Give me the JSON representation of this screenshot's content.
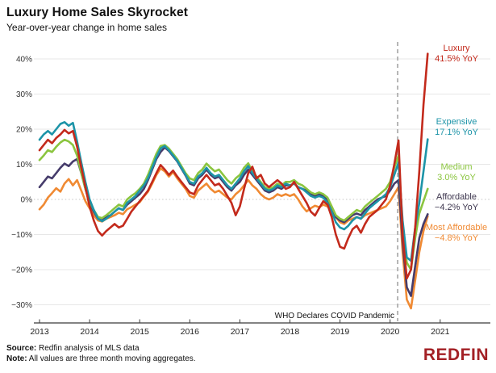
{
  "header": {
    "title": "Luxury Home Sales Skyrocket",
    "subtitle": "Year-over-year change in home sales"
  },
  "footer": {
    "source_label": "Source:",
    "source_text": "Redfin analysis of MLS data",
    "note_label": "Note:",
    "note_text": "All values are three month moving aggregates.",
    "logo": "REDFIN",
    "logo_color": "#a32025"
  },
  "chart_data": {
    "type": "line",
    "title": "Luxury Home Sales Skyrocket",
    "subtitle": "Year-over-year change in home sales",
    "x_interval": "monthly",
    "x_start": "2013-01",
    "x_end": "2020-10",
    "x_tick_labels": [
      "2013",
      "2014",
      "2015",
      "2016",
      "2017",
      "2018",
      "2019",
      "2020",
      "2021"
    ],
    "y_ticks": [
      40,
      30,
      20,
      10,
      0,
      -10,
      -20,
      -30
    ],
    "y_tick_labels": [
      "40%",
      "30%",
      "20%",
      "10%",
      "0%",
      "−10%",
      "−20%",
      "−30%"
    ],
    "ylim": [
      -35,
      45
    ],
    "grid": true,
    "zero_line_style": "dotted",
    "legend_position": "right-inline",
    "covid_line": {
      "label": "WHO Declares COVID Pandemic",
      "date": "2020-03"
    },
    "series": [
      {
        "name": "Luxury",
        "yoy_label": "41.5% YoY",
        "color": "#c32a1c",
        "label_color": "#c32a1c",
        "values": [
          14,
          15.5,
          17,
          16,
          17.5,
          18.5,
          19.8,
          18.8,
          19.5,
          15,
          9,
          3.5,
          -2,
          -6,
          -9,
          -10.3,
          -9,
          -8,
          -7,
          -8,
          -7.5,
          -5.5,
          -3.5,
          -2,
          -0.5,
          1,
          2.5,
          5,
          7.5,
          9.8,
          8.5,
          7,
          8.2,
          6.5,
          5,
          3.5,
          2,
          1.5,
          4,
          5.5,
          7,
          5.5,
          4,
          4.5,
          3,
          1,
          -1,
          -4.5,
          -2,
          3,
          7.5,
          9.3,
          6,
          7,
          4.5,
          3.5,
          4.5,
          5.5,
          4.5,
          3,
          3.5,
          5,
          3,
          1,
          -1,
          -3.5,
          -4.6,
          -2.5,
          -0.5,
          -1.5,
          -5,
          -10,
          -13.5,
          -14,
          -11,
          -8.5,
          -7.5,
          -9.5,
          -7,
          -5,
          -4,
          -3,
          -1.5,
          0,
          4,
          10,
          16.8,
          -10,
          -22.5,
          -20,
          -8,
          8,
          27,
          41.5
        ]
      },
      {
        "name": "Expensive",
        "yoy_label": "17.1% YoY",
        "color": "#1d94a8",
        "label_color": "#1d94a8",
        "values": [
          17,
          18.5,
          19.5,
          18.5,
          20,
          21.5,
          22,
          21,
          21.8,
          16.5,
          10.5,
          5,
          0,
          -3,
          -5.5,
          -6.2,
          -5.5,
          -4.5,
          -3.5,
          -2.5,
          -3,
          -1,
          0,
          1,
          2.5,
          4,
          6,
          9,
          12,
          14.5,
          15.2,
          14,
          12.5,
          11,
          9,
          7,
          5,
          4.5,
          6.5,
          7.5,
          9,
          7.5,
          6.5,
          7,
          5.5,
          4,
          3,
          4.5,
          6,
          8,
          9.5,
          7.5,
          6,
          4.5,
          3,
          2.5,
          3,
          4,
          3.5,
          4.5,
          4,
          4.5,
          3.5,
          3,
          2,
          1,
          0.5,
          1,
          0.5,
          -1,
          -3.5,
          -6.5,
          -8,
          -8.5,
          -7.5,
          -6,
          -5,
          -5.5,
          -4,
          -2.5,
          -1.5,
          -0.5,
          0.5,
          1.5,
          3.5,
          7,
          10.5,
          -6,
          -16.5,
          -17.5,
          -8,
          -1,
          8,
          17.1
        ]
      },
      {
        "name": "Medium",
        "yoy_label": "3.0% YoY",
        "color": "#8bc53f",
        "label_color": "#8bc53f",
        "values": [
          11.2,
          12.5,
          14,
          13.5,
          15,
          16.2,
          17,
          16.5,
          15.5,
          12.5,
          7.5,
          3,
          -0.5,
          -3,
          -5,
          -5.3,
          -4.5,
          -3.5,
          -2.5,
          -1.5,
          -2,
          0,
          1,
          1.8,
          3,
          4.5,
          7,
          10,
          13,
          15.2,
          15.5,
          14.5,
          13,
          11.5,
          9.5,
          7.5,
          6,
          5.5,
          7.5,
          8.5,
          10.2,
          9,
          8,
          8.5,
          7,
          5.5,
          4.5,
          6,
          7,
          9,
          10.3,
          8,
          6.5,
          5,
          3.5,
          3,
          3.5,
          4.5,
          4,
          5,
          5,
          5.5,
          4.5,
          4,
          3,
          2,
          1.5,
          2,
          1.5,
          0.5,
          -2,
          -4.5,
          -5.5,
          -6,
          -5,
          -4,
          -3,
          -3.5,
          -2,
          -1,
          0,
          1,
          2,
          3,
          5,
          9,
          12.5,
          -8,
          -18,
          -20,
          -11,
          -4,
          -0.5,
          3.0
        ]
      },
      {
        "name": "Affordable",
        "yoy_label": "−4.2% YoY",
        "color": "#463c6b",
        "label_color": "#3e374f",
        "values": [
          3.5,
          5,
          6.5,
          6,
          7.5,
          9,
          10.2,
          9.5,
          10.8,
          11.5,
          7.5,
          3,
          -1,
          -3.5,
          -5.5,
          -6,
          -5,
          -4.5,
          -3.5,
          -2.5,
          -3,
          -1.5,
          -0.5,
          0.5,
          1.5,
          3,
          5.5,
          8.5,
          11.5,
          13.5,
          14.8,
          13.8,
          12.3,
          10.8,
          8.8,
          6.8,
          4.5,
          4,
          6,
          7,
          8.5,
          7,
          6,
          6.5,
          5,
          3.5,
          2.5,
          4,
          5,
          7,
          8.5,
          7,
          5.5,
          4,
          2.5,
          2,
          2.5,
          3.5,
          3,
          4,
          4,
          4.5,
          3.5,
          3,
          2.5,
          1.5,
          1,
          1.5,
          1,
          0,
          -2.5,
          -5,
          -6,
          -6.5,
          -5.5,
          -4.5,
          -4,
          -4.5,
          -3,
          -2,
          -1,
          0,
          0.5,
          1,
          2.5,
          4.5,
          5.5,
          -12,
          -25,
          -27.5,
          -19,
          -11,
          -7,
          -4.2
        ]
      },
      {
        "name": "Most Affordable",
        "yoy_label": "−4.8% YoY",
        "color": "#f08a33",
        "label_color": "#f08a33",
        "values": [
          -2.8,
          -1.5,
          0.5,
          1.8,
          3.2,
          2.2,
          4.5,
          5.8,
          4,
          5.5,
          2.5,
          -0.5,
          -2.5,
          -4.5,
          -6,
          -6.3,
          -5.5,
          -5,
          -4.5,
          -3.8,
          -4.2,
          -2.8,
          -2.2,
          -1.5,
          -0.8,
          0.8,
          2.2,
          4.5,
          7,
          8.8,
          8,
          6.5,
          7.8,
          6,
          4.5,
          3,
          1,
          0.5,
          2.5,
          3.5,
          4.5,
          3,
          2,
          2.5,
          1.5,
          0.5,
          0,
          1.5,
          2.5,
          4,
          5.5,
          4,
          3,
          1.5,
          0.5,
          0,
          0.5,
          1.5,
          1,
          1.5,
          1,
          1.5,
          0,
          -2,
          -3.4,
          -2.5,
          -1.8,
          -2.2,
          -1.5,
          -2,
          -3,
          -5,
          -6.5,
          -7,
          -6,
          -5.5,
          -5,
          -5.5,
          -4.5,
          -4,
          -3.5,
          -3,
          -2.5,
          -2,
          -0.5,
          1.5,
          3.5,
          -15,
          -28.5,
          -31,
          -23,
          -15,
          -9,
          -4.8
        ]
      }
    ]
  }
}
